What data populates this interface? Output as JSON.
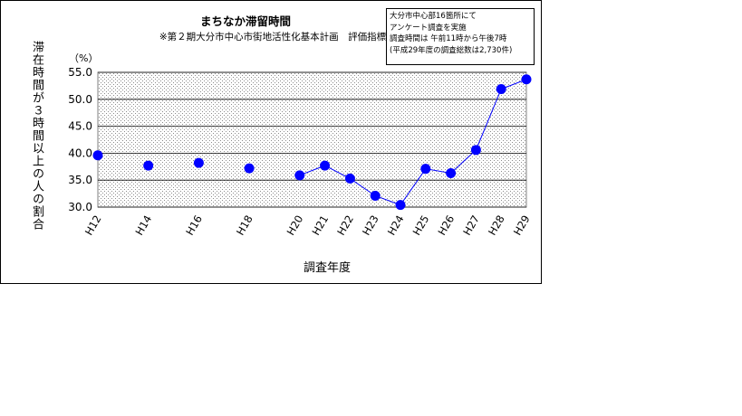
{
  "chart_data": {
    "type": "line",
    "title": "まちなか滞留時間",
    "subtitle": "※第２期大分市中心市街地活性化基本計画　評価指標",
    "ylabel": "滞在時間が３時間以上の人の割合",
    "xlabel": "調査年度",
    "unit": "（%）",
    "note": [
      "大分市中心部16箇所にて",
      "アンケート調査を実施",
      "調査時間は 午前11時から午後7時",
      "(平成29年度の調査総数は2,730件)"
    ],
    "ylim": [
      30.0,
      55.0
    ],
    "yticks": [
      "55.0",
      "50.0",
      "45.0",
      "40.0",
      "35.0",
      "30.0"
    ],
    "ytick_values": [
      55,
      50,
      45,
      40,
      35,
      30
    ],
    "categories": [
      "H12",
      "H14",
      "H16",
      "H18",
      "H20",
      "H21",
      "H22",
      "H23",
      "H24",
      "H25",
      "H26",
      "H27",
      "H28",
      "H29"
    ],
    "values": [
      39.6,
      37.7,
      38.2,
      37.2,
      35.9,
      37.7,
      35.3,
      32.1,
      30.4,
      37.1,
      36.3,
      40.6,
      51.9,
      53.7
    ],
    "connected_from": "H20",
    "series_color": "#0000ff",
    "grid": true
  }
}
